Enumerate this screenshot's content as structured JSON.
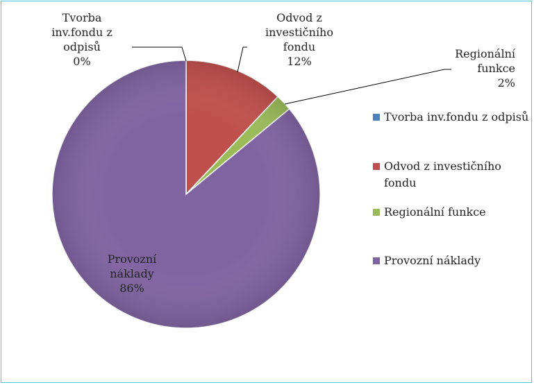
{
  "chart_data": {
    "type": "pie",
    "categories": [
      "Tvorba inv.fondu z odpisů",
      "Odvod z investičního fondu",
      "Regionální funkce",
      "Provozní náklady"
    ],
    "values": [
      0,
      12,
      2,
      86
    ],
    "value_labels": [
      "0%",
      "12%",
      "2%",
      "86%"
    ],
    "colors": [
      "#4f81bd",
      "#c0504d",
      "#9bbb59",
      "#8064a2"
    ],
    "legend": "right"
  }
}
